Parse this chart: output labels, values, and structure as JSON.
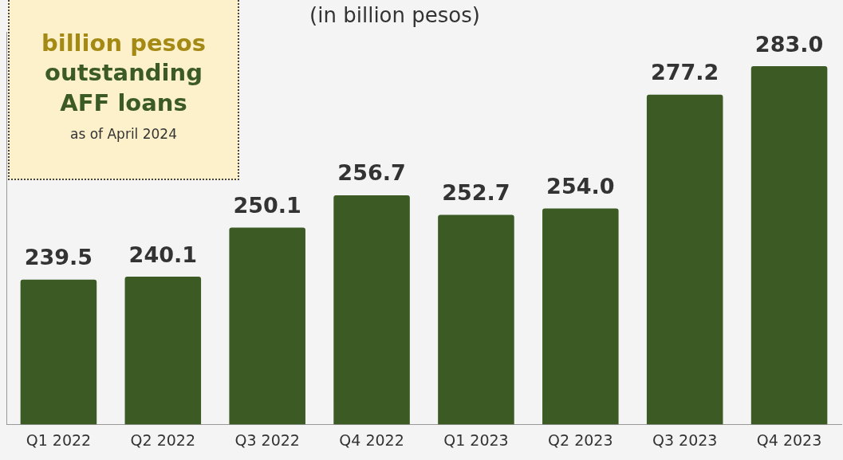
{
  "chart_data": {
    "type": "bar",
    "subtitle": "(in billion pesos)",
    "categories": [
      "Q1 2022",
      "Q2 2022",
      "Q3 2022",
      "Q4 2022",
      "Q1 2023",
      "Q2 2023",
      "Q3 2023",
      "Q4 2023"
    ],
    "values": [
      239.5,
      240.1,
      250.1,
      256.7,
      252.7,
      254.0,
      277.2,
      283.0
    ],
    "color": "#3b5a24",
    "value_labels": [
      "239.5",
      "240.1",
      "250.1",
      "256.7",
      "252.7",
      "254.0",
      "277.2",
      "283.0"
    ],
    "ylim": [
      210,
      290
    ],
    "tick_labels": "x",
    "grid": false,
    "legend": false,
    "annotations": [
      "billion pesos",
      "outstanding AFF loans",
      "as of April 2024"
    ]
  }
}
